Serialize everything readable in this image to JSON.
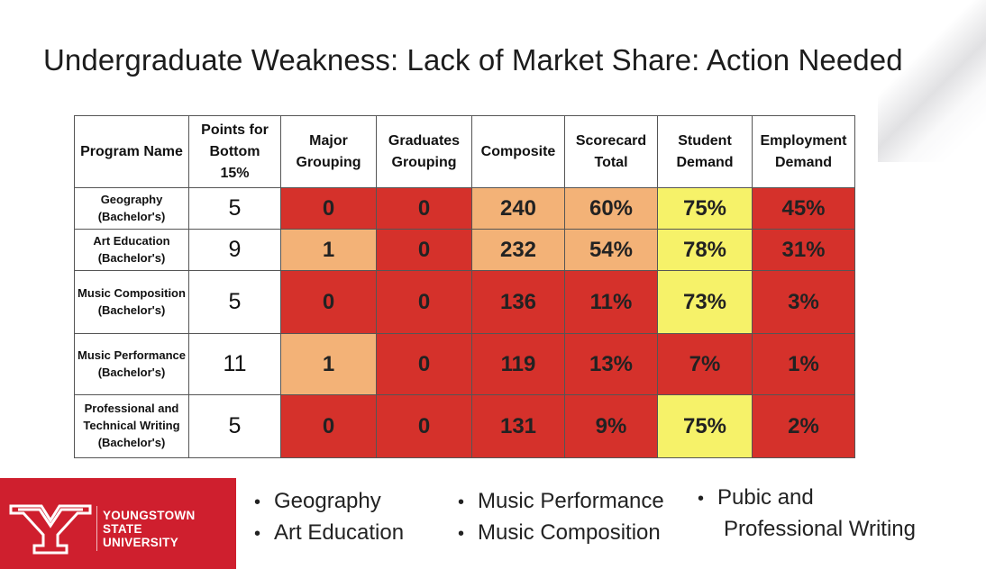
{
  "title": "Undergraduate Weakness: Lack of Market Share: Action Needed",
  "colors": {
    "red": "#d5312b",
    "orange": "#f3b277",
    "yellow": "#f6f269",
    "brand_red": "#cf1f2e"
  },
  "table": {
    "headers": [
      "Program Name",
      "Points for Bottom 15%",
      "Major Grouping",
      "Graduates Grouping",
      "Composite",
      "Scorecard Total",
      "Student Demand",
      "Employment Demand"
    ],
    "rows": [
      {
        "name": "Geography (Bachelor's)",
        "points": "5",
        "cells": [
          {
            "value": "0",
            "color": "red"
          },
          {
            "value": "0",
            "color": "red"
          },
          {
            "value": "240",
            "color": "orange"
          },
          {
            "value": "60%",
            "color": "orange"
          },
          {
            "value": "75%",
            "color": "yellow"
          },
          {
            "value": "45%",
            "color": "red"
          }
        ]
      },
      {
        "name": "Art Education (Bachelor's)",
        "points": "9",
        "cells": [
          {
            "value": "1",
            "color": "orange"
          },
          {
            "value": "0",
            "color": "red"
          },
          {
            "value": "232",
            "color": "orange"
          },
          {
            "value": "54%",
            "color": "orange"
          },
          {
            "value": "78%",
            "color": "yellow"
          },
          {
            "value": "31%",
            "color": "red"
          }
        ]
      },
      {
        "name": "Music Composition (Bachelor's)",
        "points": "5",
        "cells": [
          {
            "value": "0",
            "color": "red"
          },
          {
            "value": "0",
            "color": "red"
          },
          {
            "value": "136",
            "color": "red"
          },
          {
            "value": "11%",
            "color": "red"
          },
          {
            "value": "73%",
            "color": "yellow"
          },
          {
            "value": "3%",
            "color": "red"
          }
        ]
      },
      {
        "name": "Music Performance (Bachelor's)",
        "points": "11",
        "cells": [
          {
            "value": "1",
            "color": "orange"
          },
          {
            "value": "0",
            "color": "red"
          },
          {
            "value": "119",
            "color": "red"
          },
          {
            "value": "13%",
            "color": "red"
          },
          {
            "value": "7%",
            "color": "red"
          },
          {
            "value": "1%",
            "color": "red"
          }
        ]
      },
      {
        "name": "Professional and Technical Writing (Bachelor's)",
        "points": "5",
        "cells": [
          {
            "value": "0",
            "color": "red"
          },
          {
            "value": "0",
            "color": "red"
          },
          {
            "value": "131",
            "color": "red"
          },
          {
            "value": "9%",
            "color": "red"
          },
          {
            "value": "75%",
            "color": "yellow"
          },
          {
            "value": "2%",
            "color": "red"
          }
        ]
      }
    ]
  },
  "logo": {
    "line1": "YOUNGSTOWN",
    "line2": "STATE",
    "line3": "UNIVERSITY",
    "icon": "ysu-y-logo-icon"
  },
  "bullets": {
    "col1": [
      "Geography",
      "Art Education"
    ],
    "col2": [
      "Music Performance",
      "Music Composition"
    ],
    "col3": {
      "line1": "Pubic and",
      "line2": "Professional Writing"
    }
  }
}
